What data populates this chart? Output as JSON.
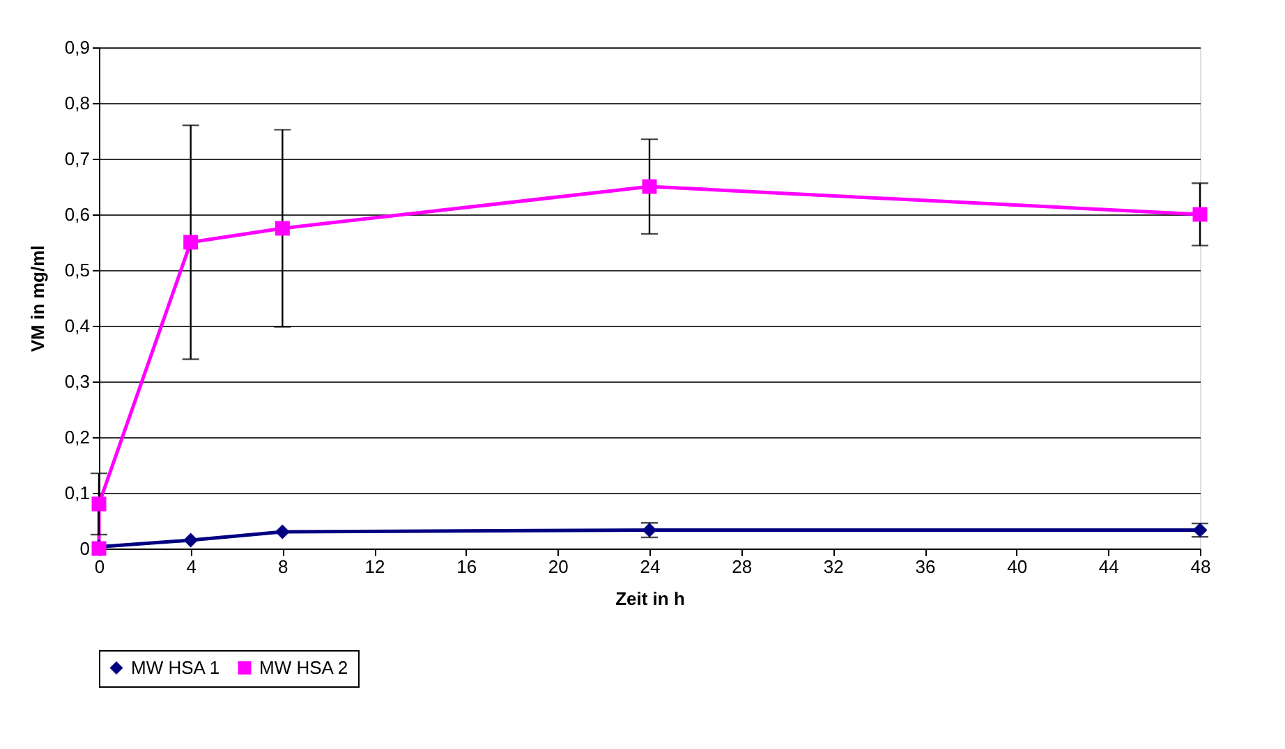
{
  "chart_data": {
    "type": "line",
    "xlabel": "Zeit in h",
    "ylabel": "VM in mg/ml",
    "xlim": [
      0,
      48
    ],
    "xticks": [
      0,
      4,
      8,
      12,
      16,
      20,
      24,
      28,
      32,
      36,
      40,
      44,
      48
    ],
    "ylim": [
      0,
      0.9
    ],
    "yticks": [
      {
        "value": 0,
        "label": "0"
      },
      {
        "value": 0.1,
        "label": "0,1"
      },
      {
        "value": 0.2,
        "label": "0,2"
      },
      {
        "value": 0.3,
        "label": "0,3"
      },
      {
        "value": 0.4,
        "label": "0,4"
      },
      {
        "value": 0.5,
        "label": "0,5"
      },
      {
        "value": 0.6,
        "label": "0,6"
      },
      {
        "value": 0.7,
        "label": "0,7"
      },
      {
        "value": 0.8,
        "label": "0,8"
      },
      {
        "value": 0.9,
        "label": "0,9"
      }
    ],
    "grid": "y",
    "legend": "bottom",
    "series": [
      {
        "name": "MW HSA 1",
        "color": "#000080",
        "marker": "diamond",
        "x": [
          0,
          4,
          8,
          24,
          48
        ],
        "values": [
          0.003,
          0.015,
          0.03,
          0.033,
          0.033
        ],
        "errors": [
          null,
          null,
          null,
          0.013,
          0.012
        ]
      },
      {
        "name": "MW HSA 2",
        "color": "#ff00ff",
        "marker": "square",
        "x": [
          0,
          0,
          4,
          8,
          24,
          48
        ],
        "values": [
          0.0,
          0.08,
          0.55,
          0.575,
          0.65,
          0.6
        ],
        "errors": [
          null,
          0.055,
          0.21,
          0.177,
          0.085,
          0.056
        ]
      }
    ]
  }
}
